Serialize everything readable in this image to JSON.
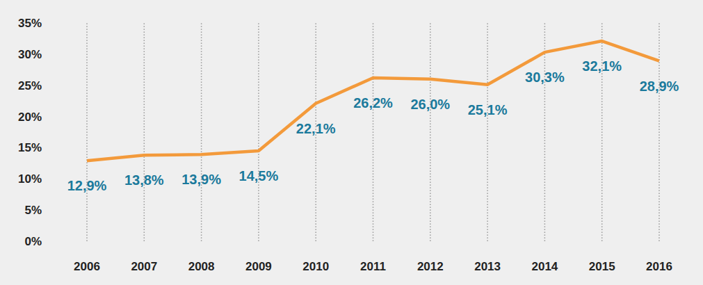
{
  "chart_data": {
    "type": "line",
    "categories": [
      "2006",
      "2007",
      "2008",
      "2009",
      "2010",
      "2011",
      "2012",
      "2013",
      "2014",
      "2015",
      "2016"
    ],
    "values": [
      12.9,
      13.8,
      13.9,
      14.5,
      22.1,
      26.2,
      26.0,
      25.1,
      30.3,
      32.1,
      28.9
    ],
    "value_labels": [
      "12,9%",
      "13,8%",
      "13,9%",
      "14,5%",
      "22,1%",
      "26,2%",
      "26,0%",
      "25,1%",
      "30,3%",
      "32,1%",
      "28,9%"
    ],
    "color": "#f39a3b",
    "data_labels": true,
    "grid": true,
    "ylim": [
      0,
      35
    ],
    "yticks": [
      {
        "value": 0,
        "label": "0%"
      },
      {
        "value": 5,
        "label": "5%"
      },
      {
        "value": 10,
        "label": "10%"
      },
      {
        "value": 15,
        "label": "15%"
      },
      {
        "value": 20,
        "label": "20%"
      },
      {
        "value": 25,
        "label": "25%"
      },
      {
        "value": 30,
        "label": "30%"
      },
      {
        "value": 35,
        "label": "35%"
      }
    ]
  }
}
